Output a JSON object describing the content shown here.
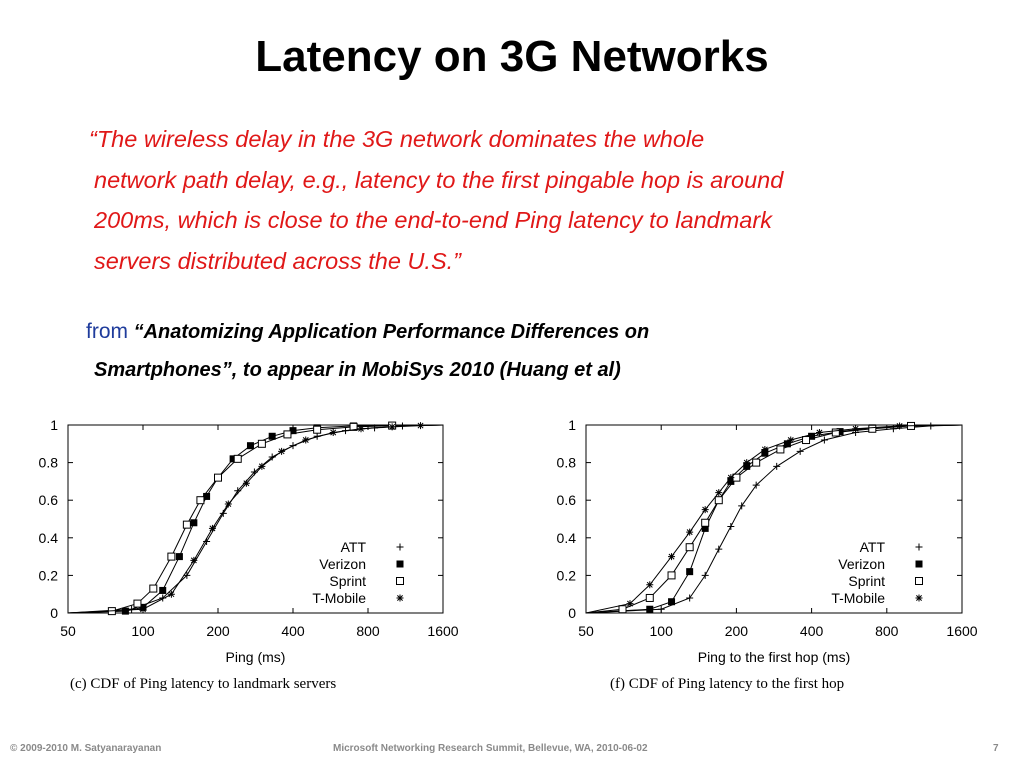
{
  "slide": {
    "title": "Latency on 3G Networks",
    "quote_lines": [
      "“The wireless delay in the 3G network dominates the whole",
      "network path delay, e.g., latency to the first pingable hop is around",
      "200ms, which is close to the end-to-end Ping latency to landmark",
      "servers distributed across the U.S.”"
    ],
    "source": {
      "from": "from",
      "open_quote": "“",
      "title_line1": "Anatomizing Application Performance Differences on",
      "title_line2": "Smartphones”, to appear in MobiSys 2010 (Huang et al)"
    },
    "colors": {
      "title": "#000000",
      "quote": "#e01818",
      "from": "#1f3c9c",
      "footer": "#8a8a8a"
    }
  },
  "footer": {
    "copyright": "© 2009-2010  M. Satyanarayanan",
    "event": "Microsoft Networking Research Summit, Bellevue, WA,  2010-06-02",
    "page": "7"
  },
  "chart_data": [
    {
      "type": "line",
      "caption": "(c) CDF of Ping latency to landmark servers",
      "xlabel": "Ping (ms)",
      "ylabel": "",
      "x_scale": "log",
      "xlim": [
        50,
        1600
      ],
      "ylim": [
        0,
        1
      ],
      "x_ticks": [
        "50",
        "100",
        "200",
        "400",
        "800",
        "1600"
      ],
      "y_ticks": [
        "0",
        "0.2",
        "0.4",
        "0.6",
        "0.8",
        "1"
      ],
      "legend_position": "bottom-right",
      "series": [
        {
          "name": "ATT",
          "marker": "plus",
          "x": [
            50,
            90,
            120,
            150,
            180,
            210,
            240,
            280,
            330,
            400,
            500,
            650,
            850,
            1100,
            1600
          ],
          "y": [
            0,
            0.02,
            0.08,
            0.2,
            0.38,
            0.53,
            0.65,
            0.75,
            0.83,
            0.89,
            0.94,
            0.97,
            0.985,
            0.995,
            1
          ]
        },
        {
          "name": "Verizon",
          "marker": "square-filled",
          "x": [
            50,
            85,
            100,
            120,
            140,
            160,
            180,
            200,
            230,
            270,
            330,
            400,
            500,
            700,
            1600
          ],
          "y": [
            0,
            0.01,
            0.03,
            0.12,
            0.3,
            0.48,
            0.62,
            0.72,
            0.82,
            0.89,
            0.94,
            0.97,
            0.985,
            0.995,
            1
          ]
        },
        {
          "name": "Sprint",
          "marker": "square-open",
          "x": [
            50,
            75,
            95,
            110,
            130,
            150,
            170,
            200,
            240,
            300,
            380,
            500,
            700,
            1000,
            1600
          ],
          "y": [
            0,
            0.01,
            0.05,
            0.13,
            0.3,
            0.47,
            0.6,
            0.72,
            0.82,
            0.9,
            0.95,
            0.975,
            0.99,
            0.997,
            1
          ]
        },
        {
          "name": "T-Mobile",
          "marker": "asterisk",
          "x": [
            50,
            100,
            130,
            160,
            190,
            220,
            260,
            300,
            360,
            450,
            580,
            750,
            1000,
            1300,
            1600
          ],
          "y": [
            0,
            0.02,
            0.1,
            0.28,
            0.45,
            0.58,
            0.69,
            0.78,
            0.86,
            0.92,
            0.96,
            0.98,
            0.99,
            0.997,
            1
          ]
        }
      ]
    },
    {
      "type": "line",
      "caption": "(f) CDF of Ping latency to the first hop",
      "xlabel": "Ping to the first hop (ms)",
      "ylabel": "",
      "x_scale": "log",
      "xlim": [
        50,
        1600
      ],
      "ylim": [
        0,
        1
      ],
      "x_ticks": [
        "50",
        "100",
        "200",
        "400",
        "800",
        "1600"
      ],
      "y_ticks": [
        "0",
        "0.2",
        "0.4",
        "0.6",
        "0.8",
        "1"
      ],
      "legend_position": "bottom-right",
      "series": [
        {
          "name": "ATT",
          "marker": "plus",
          "x": [
            50,
            100,
            130,
            150,
            170,
            190,
            210,
            240,
            290,
            360,
            450,
            600,
            850,
            1200,
            1600
          ],
          "y": [
            0,
            0.02,
            0.08,
            0.2,
            0.34,
            0.46,
            0.57,
            0.68,
            0.78,
            0.86,
            0.92,
            0.96,
            0.98,
            0.995,
            1
          ]
        },
        {
          "name": "Verizon",
          "marker": "square-filled",
          "x": [
            50,
            90,
            110,
            130,
            150,
            170,
            190,
            220,
            260,
            320,
            400,
            520,
            700,
            1000,
            1600
          ],
          "y": [
            0,
            0.02,
            0.06,
            0.22,
            0.45,
            0.6,
            0.7,
            0.78,
            0.85,
            0.9,
            0.94,
            0.965,
            0.985,
            0.995,
            1
          ]
        },
        {
          "name": "Sprint",
          "marker": "square-open",
          "x": [
            50,
            70,
            90,
            110,
            130,
            150,
            170,
            200,
            240,
            300,
            380,
            500,
            700,
            1000,
            1600
          ],
          "y": [
            0,
            0.02,
            0.08,
            0.2,
            0.35,
            0.48,
            0.6,
            0.72,
            0.8,
            0.87,
            0.92,
            0.96,
            0.98,
            0.995,
            1
          ]
        },
        {
          "name": "T-Mobile",
          "marker": "asterisk",
          "x": [
            50,
            75,
            90,
            110,
            130,
            150,
            170,
            190,
            220,
            260,
            330,
            430,
            600,
            900,
            1600
          ],
          "y": [
            0,
            0.05,
            0.15,
            0.3,
            0.43,
            0.55,
            0.64,
            0.72,
            0.8,
            0.87,
            0.92,
            0.96,
            0.98,
            0.995,
            1
          ]
        }
      ]
    }
  ]
}
